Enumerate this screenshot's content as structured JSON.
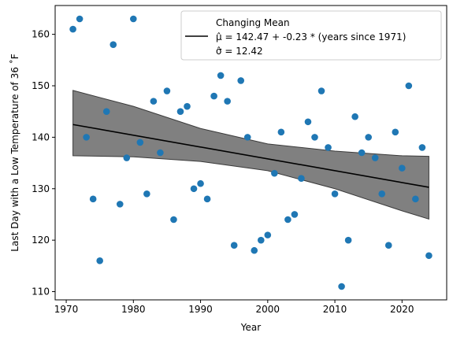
{
  "chart_data": {
    "type": "scatter",
    "xlabel": "Year",
    "ylabel": "Last Day with a Low Temperature of 36 ˚F",
    "xlim": [
      1968.35,
      2026.65
    ],
    "ylim": [
      108.4,
      165.6
    ],
    "xticks": [
      1970,
      1980,
      1990,
      2000,
      2010,
      2020
    ],
    "yticks": [
      110,
      120,
      130,
      140,
      150,
      160
    ],
    "grid": false,
    "legend_position": "top-right",
    "colors": {
      "points": "#1f77b4",
      "fit_line": "#000000",
      "band": "#808080",
      "band_edge": "#3a3a3a"
    },
    "legend": {
      "entry_label": "Changing Mean",
      "equation": "μ̂ = 142.47 + -0.23 * (years since 1971)",
      "sigma": "σ̂ = 12.42"
    },
    "points": {
      "x": [
        1971,
        1972,
        1973,
        1974,
        1975,
        1976,
        1977,
        1978,
        1979,
        1980,
        1981,
        1982,
        1983,
        1984,
        1985,
        1986,
        1987,
        1988,
        1989,
        1990,
        1991,
        1992,
        1993,
        1994,
        1995,
        1996,
        1997,
        1998,
        1999,
        2000,
        2001,
        2002,
        2003,
        2004,
        2005,
        2006,
        2007,
        2008,
        2009,
        2010,
        2011,
        2012,
        2013,
        2014,
        2015,
        2016,
        2017,
        2018,
        2019,
        2020,
        2021,
        2022,
        2023,
        2024
      ],
      "y": [
        161,
        163,
        140,
        128,
        116,
        145,
        158,
        127,
        136,
        163,
        139,
        129,
        147,
        137,
        149,
        124,
        145,
        146,
        130,
        131,
        128,
        148,
        152,
        147,
        119,
        151,
        140,
        118,
        120,
        121,
        133,
        141,
        124,
        125,
        132,
        143,
        140,
        149,
        138,
        129,
        111,
        120,
        144,
        137,
        140,
        136,
        129,
        119,
        141,
        134,
        150,
        128,
        138,
        117
      ]
    },
    "fit": {
      "x": [
        1971,
        2024
      ],
      "y": [
        142.47,
        130.28
      ]
    },
    "band": {
      "x": [
        1971,
        1980,
        1990,
        2000,
        2010,
        2020,
        2024
      ],
      "upper": [
        149.1,
        146.0,
        141.7,
        138.7,
        137.3,
        136.4,
        136.3
      ],
      "lower": [
        136.4,
        136.2,
        135.3,
        133.5,
        130.0,
        125.7,
        124.1
      ]
    }
  }
}
